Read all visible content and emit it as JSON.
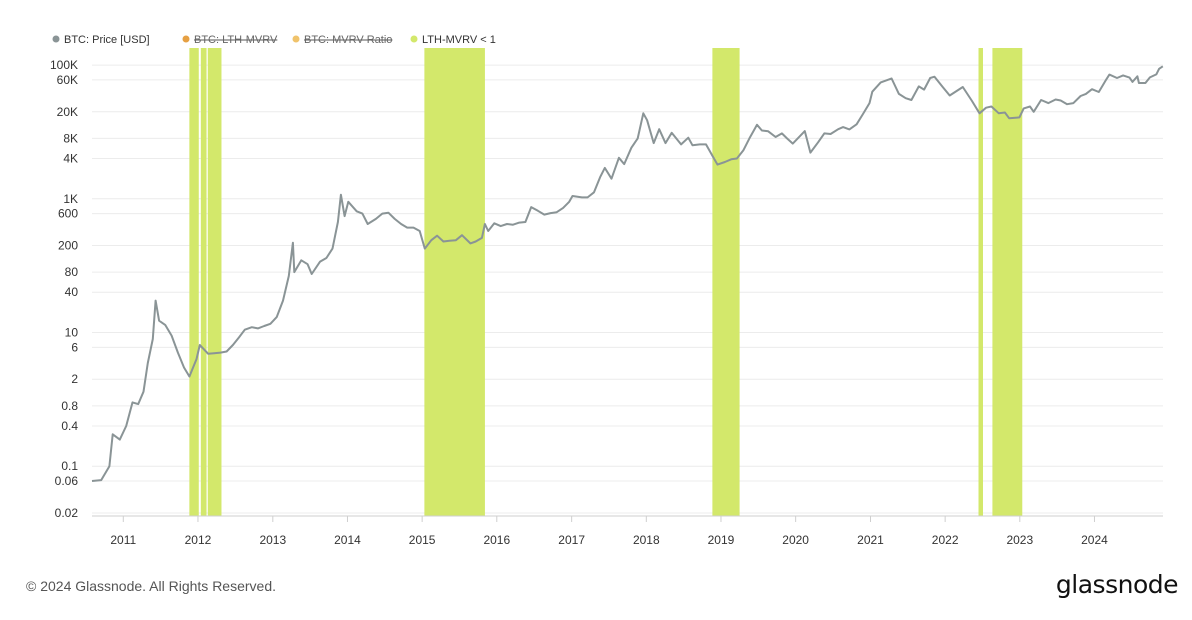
{
  "chart_data": {
    "type": "line",
    "x_axis": {
      "range": [
        "2010-08-01",
        "2024-12-01"
      ],
      "ticks": [
        "2011",
        "2012",
        "2013",
        "2014",
        "2015",
        "2016",
        "2017",
        "2018",
        "2019",
        "2020",
        "2021",
        "2022",
        "2023",
        "2024"
      ]
    },
    "y_axis": {
      "scale": "log",
      "range": [
        0.018,
        180000
      ],
      "ticks": [
        "0.02",
        "0.06",
        "0.1",
        "0.4",
        "0.8",
        "2",
        "6",
        "10",
        "40",
        "80",
        "200",
        "600",
        "1K",
        "4K",
        "8K",
        "20K",
        "60K",
        "100K"
      ]
    },
    "legend": {
      "placement": "top-left",
      "items": [
        {
          "label": "BTC: Price [USD]",
          "color": "#8a9496",
          "active": true
        },
        {
          "label": "BTC: LTH-MVRV",
          "color": "#e6a043",
          "active": false
        },
        {
          "label": "BTC: MVRV Ratio",
          "color": "#f0c36b",
          "active": false
        },
        {
          "label": "LTH-MVRV < 1",
          "color": "#d3e86b",
          "active": true
        }
      ]
    },
    "series": [
      {
        "name": "BTC: Price [USD]",
        "color": "#8a9496",
        "points": [
          [
            "2010-08-01",
            0.06
          ],
          [
            "2010-09-15",
            0.062
          ],
          [
            "2010-10-25",
            0.1
          ],
          [
            "2010-11-10",
            0.3
          ],
          [
            "2010-12-15",
            0.25
          ],
          [
            "2011-01-15",
            0.4
          ],
          [
            "2011-02-15",
            0.9
          ],
          [
            "2011-03-15",
            0.85
          ],
          [
            "2011-04-10",
            1.3
          ],
          [
            "2011-05-01",
            3.5
          ],
          [
            "2011-05-25",
            8
          ],
          [
            "2011-06-08",
            30
          ],
          [
            "2011-06-25",
            15
          ],
          [
            "2011-07-25",
            13
          ],
          [
            "2011-08-25",
            9
          ],
          [
            "2011-09-25",
            5
          ],
          [
            "2011-10-25",
            3
          ],
          [
            "2011-11-20",
            2.2
          ],
          [
            "2011-12-25",
            4
          ],
          [
            "2012-01-10",
            6.5
          ],
          [
            "2012-02-20",
            4.8
          ],
          [
            "2012-03-20",
            4.9
          ],
          [
            "2012-04-20",
            5.0
          ],
          [
            "2012-05-20",
            5.2
          ],
          [
            "2012-06-20",
            6.5
          ],
          [
            "2012-07-20",
            8.5
          ],
          [
            "2012-08-17",
            11
          ],
          [
            "2012-09-20",
            12
          ],
          [
            "2012-10-20",
            11.5
          ],
          [
            "2012-11-20",
            12.5
          ],
          [
            "2012-12-20",
            13.5
          ],
          [
            "2013-01-20",
            17
          ],
          [
            "2013-02-20",
            30
          ],
          [
            "2013-03-20",
            70
          ],
          [
            "2013-04-09",
            220
          ],
          [
            "2013-04-16",
            80
          ],
          [
            "2013-05-20",
            120
          ],
          [
            "2013-06-20",
            105
          ],
          [
            "2013-07-10",
            75
          ],
          [
            "2013-08-20",
            115
          ],
          [
            "2013-09-20",
            130
          ],
          [
            "2013-10-20",
            180
          ],
          [
            "2013-11-15",
            450
          ],
          [
            "2013-11-30",
            1150
          ],
          [
            "2013-12-18",
            550
          ],
          [
            "2014-01-05",
            900
          ],
          [
            "2014-02-15",
            650
          ],
          [
            "2014-03-15",
            600
          ],
          [
            "2014-04-10",
            420
          ],
          [
            "2014-05-20",
            500
          ],
          [
            "2014-06-20",
            600
          ],
          [
            "2014-07-20",
            620
          ],
          [
            "2014-08-20",
            500
          ],
          [
            "2014-09-20",
            420
          ],
          [
            "2014-10-20",
            370
          ],
          [
            "2014-11-20",
            370
          ],
          [
            "2014-12-20",
            330
          ],
          [
            "2015-01-14",
            180
          ],
          [
            "2015-02-15",
            240
          ],
          [
            "2015-03-15",
            280
          ],
          [
            "2015-04-15",
            230
          ],
          [
            "2015-05-15",
            235
          ],
          [
            "2015-06-15",
            240
          ],
          [
            "2015-07-15",
            285
          ],
          [
            "2015-08-25",
            215
          ],
          [
            "2015-09-20",
            230
          ],
          [
            "2015-10-20",
            260
          ],
          [
            "2015-11-04",
            420
          ],
          [
            "2015-11-20",
            330
          ],
          [
            "2015-12-20",
            430
          ],
          [
            "2016-01-20",
            390
          ],
          [
            "2016-02-20",
            420
          ],
          [
            "2016-03-20",
            410
          ],
          [
            "2016-04-20",
            440
          ],
          [
            "2016-05-20",
            450
          ],
          [
            "2016-06-17",
            750
          ],
          [
            "2016-07-20",
            660
          ],
          [
            "2016-08-20",
            580
          ],
          [
            "2016-09-20",
            610
          ],
          [
            "2016-10-20",
            630
          ],
          [
            "2016-11-20",
            730
          ],
          [
            "2016-12-20",
            900
          ],
          [
            "2017-01-05",
            1100
          ],
          [
            "2017-02-20",
            1050
          ],
          [
            "2017-03-20",
            1050
          ],
          [
            "2017-04-20",
            1250
          ],
          [
            "2017-05-20",
            2100
          ],
          [
            "2017-06-12",
            2900
          ],
          [
            "2017-07-15",
            2000
          ],
          [
            "2017-08-20",
            4100
          ],
          [
            "2017-09-15",
            3300
          ],
          [
            "2017-10-20",
            5800
          ],
          [
            "2017-11-20",
            8000
          ],
          [
            "2017-12-17",
            19000
          ],
          [
            "2018-01-05",
            15000
          ],
          [
            "2018-02-06",
            6800
          ],
          [
            "2018-03-05",
            11000
          ],
          [
            "2018-04-05",
            6800
          ],
          [
            "2018-05-05",
            9700
          ],
          [
            "2018-06-20",
            6500
          ],
          [
            "2018-07-25",
            8200
          ],
          [
            "2018-08-15",
            6300
          ],
          [
            "2018-09-20",
            6500
          ],
          [
            "2018-10-20",
            6500
          ],
          [
            "2018-11-20",
            4400
          ],
          [
            "2018-12-15",
            3250
          ],
          [
            "2019-01-20",
            3550
          ],
          [
            "2019-02-20",
            3900
          ],
          [
            "2019-03-20",
            4000
          ],
          [
            "2019-04-20",
            5300
          ],
          [
            "2019-05-20",
            8000
          ],
          [
            "2019-06-26",
            12800
          ],
          [
            "2019-07-20",
            10500
          ],
          [
            "2019-08-20",
            10200
          ],
          [
            "2019-09-25",
            8400
          ],
          [
            "2019-10-26",
            9500
          ],
          [
            "2019-11-20",
            8000
          ],
          [
            "2019-12-18",
            6700
          ],
          [
            "2020-02-15",
            10300
          ],
          [
            "2020-03-13",
            4900
          ],
          [
            "2020-04-20",
            7000
          ],
          [
            "2020-05-20",
            9500
          ],
          [
            "2020-06-20",
            9300
          ],
          [
            "2020-07-27",
            11000
          ],
          [
            "2020-08-20",
            11800
          ],
          [
            "2020-09-20",
            10900
          ],
          [
            "2020-10-25",
            13000
          ],
          [
            "2020-11-25",
            18500
          ],
          [
            "2020-12-27",
            27000
          ],
          [
            "2021-01-10",
            40000
          ],
          [
            "2021-02-20",
            55000
          ],
          [
            "2021-04-14",
            63000
          ],
          [
            "2021-05-20",
            37000
          ],
          [
            "2021-06-22",
            32000
          ],
          [
            "2021-07-20",
            30000
          ],
          [
            "2021-08-25",
            48000
          ],
          [
            "2021-09-20",
            43000
          ],
          [
            "2021-10-20",
            64000
          ],
          [
            "2021-11-10",
            67000
          ],
          [
            "2021-12-20",
            47000
          ],
          [
            "2022-01-23",
            35000
          ],
          [
            "2022-03-28",
            47000
          ],
          [
            "2022-05-12",
            29000
          ],
          [
            "2022-06-18",
            19000
          ],
          [
            "2022-07-20",
            23000
          ],
          [
            "2022-08-15",
            24000
          ],
          [
            "2022-09-20",
            19000
          ],
          [
            "2022-10-20",
            19500
          ],
          [
            "2022-11-10",
            16000
          ],
          [
            "2022-12-30",
            16500
          ],
          [
            "2023-01-20",
            22500
          ],
          [
            "2023-02-20",
            24000
          ],
          [
            "2023-03-10",
            20000
          ],
          [
            "2023-04-15",
            30000
          ],
          [
            "2023-05-20",
            27000
          ],
          [
            "2023-06-25",
            30500
          ],
          [
            "2023-07-20",
            29500
          ],
          [
            "2023-08-20",
            26000
          ],
          [
            "2023-09-20",
            27000
          ],
          [
            "2023-10-25",
            34500
          ],
          [
            "2023-11-20",
            37000
          ],
          [
            "2023-12-20",
            43500
          ],
          [
            "2024-01-22",
            39500
          ],
          [
            "2024-02-28",
            61000
          ],
          [
            "2024-03-14",
            72000
          ],
          [
            "2024-04-20",
            64000
          ],
          [
            "2024-05-20",
            70000
          ],
          [
            "2024-06-20",
            65000
          ],
          [
            "2024-07-05",
            56000
          ],
          [
            "2024-07-29",
            68000
          ],
          [
            "2024-08-05",
            54000
          ],
          [
            "2024-09-06",
            54000
          ],
          [
            "2024-09-28",
            65500
          ],
          [
            "2024-10-29",
            72500
          ],
          [
            "2024-11-12",
            88000
          ],
          [
            "2024-11-30",
            96000
          ]
        ]
      }
    ],
    "highlight_bands": {
      "label": "LTH-MVRV < 1",
      "color": "#d3e86b",
      "ranges": [
        [
          "2011-11-20",
          "2012-01-05"
        ],
        [
          "2012-01-15",
          "2012-02-12"
        ],
        [
          "2012-02-18",
          "2012-04-25"
        ],
        [
          "2015-01-12",
          "2015-11-04"
        ],
        [
          "2018-11-20",
          "2019-04-02"
        ],
        [
          "2022-06-13",
          "2022-07-05"
        ],
        [
          "2022-08-20",
          "2023-01-13"
        ]
      ]
    }
  },
  "footer": {
    "copyright": "© 2024 Glassnode. All Rights Reserved.",
    "logo": "glassnode"
  }
}
